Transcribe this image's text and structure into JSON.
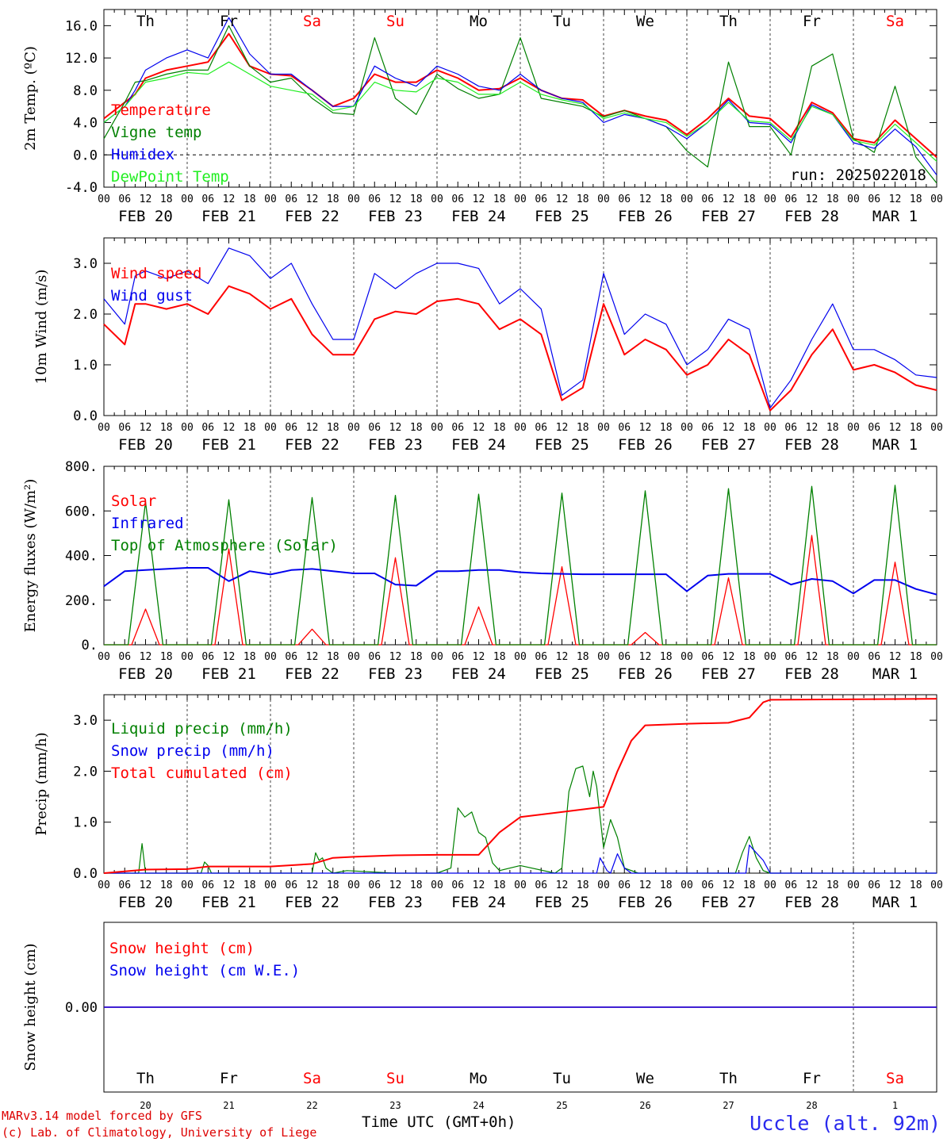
{
  "run_label": "run: 2025022018",
  "footer": {
    "credit_line1": "MARv3.14 model forced by GFS",
    "credit_line2": "(c) Lab. of Climatology, University of Liege",
    "station": "Uccle (alt. 92m)",
    "time_axis_label": "Time UTC (GMT+0h)"
  },
  "days": [
    "Th",
    "Fr",
    "Sa",
    "Su",
    "Mo",
    "Tu",
    "We",
    "Th",
    "Fr",
    "Sa"
  ],
  "weekend_days": [
    "Sa",
    "Su"
  ],
  "dates": [
    "FEB 20",
    "FEB 21",
    "FEB 22",
    "FEB 23",
    "FEB 24",
    "FEB 25",
    "FEB 26",
    "FEB 27",
    "FEB 28",
    "MAR  1"
  ],
  "day_numbers": [
    "20",
    "21",
    "22",
    "23",
    "24",
    "25",
    "26",
    "27",
    "28",
    "1"
  ],
  "hour_ticks": [
    "00",
    "06",
    "12",
    "18"
  ],
  "chart_data": [
    {
      "type": "line",
      "ylabel": "2m Temp. (ºC)",
      "ylim": [
        -4,
        18
      ],
      "yticks": [
        "-4.0",
        "0.0",
        "4.0",
        "8.0",
        "12.0",
        "16.0"
      ],
      "x_hours": [
        0,
        6,
        9,
        12,
        18,
        24,
        30,
        36,
        42,
        48,
        54,
        60,
        66,
        72,
        78,
        84,
        90,
        96,
        102,
        108,
        114,
        120,
        126,
        132,
        138,
        144,
        150,
        156,
        162,
        168,
        174,
        180,
        186,
        192,
        198,
        204,
        210,
        216,
        222,
        228,
        234,
        240
      ],
      "series": [
        {
          "name": "Temperature",
          "color": "#ff0000",
          "values": [
            4.5,
            6.5,
            7.5,
            9.5,
            10.5,
            11,
            11.5,
            15,
            11,
            10,
            9.8,
            8,
            6,
            7,
            10,
            9,
            9,
            10.5,
            9.5,
            8,
            8.2,
            9.5,
            8,
            7,
            6.8,
            4.8,
            5.5,
            4.8,
            4.3,
            2.5,
            4.5,
            7,
            4.8,
            4.5,
            2.2,
            6.5,
            5.2,
            2,
            1.5,
            4.3,
            2,
            -0.3
          ]
        },
        {
          "name": "Vigne temp",
          "color": "#008000",
          "values": [
            2,
            6.5,
            9,
            9.2,
            10,
            10.5,
            10.5,
            16,
            11,
            9,
            9.5,
            7,
            5.2,
            5,
            14.5,
            7,
            5,
            10,
            8.2,
            7,
            7.5,
            14.5,
            7,
            6.5,
            6,
            4.7,
            5.5,
            4.5,
            3.5,
            0.5,
            -1.5,
            11.5,
            3.5,
            3.5,
            0,
            11,
            12.5,
            2,
            0.3,
            8.5,
            -0.3,
            -3.5
          ]
        },
        {
          "name": "Humidex",
          "color": "#0000ee",
          "values": [
            4,
            6,
            8,
            10.5,
            12,
            13,
            12,
            17,
            12.5,
            10,
            10,
            8,
            6,
            6,
            11,
            9.5,
            8.5,
            11,
            10,
            8.5,
            8,
            10,
            8,
            7,
            6.5,
            4,
            5,
            4.5,
            3.5,
            2,
            4,
            6.8,
            4,
            3.8,
            1.5,
            6.2,
            5,
            1.5,
            0.8,
            3.2,
            1,
            -2.5
          ]
        },
        {
          "name": "DewPoint Temp",
          "color": "#22ee22",
          "values": [
            4,
            6,
            7.5,
            9,
            9.5,
            10.2,
            10,
            11.5,
            10,
            8.5,
            8,
            7.5,
            5.5,
            6,
            9,
            8,
            7.8,
            9.5,
            9,
            7.5,
            7.5,
            9,
            7.5,
            6.8,
            6.3,
            4.5,
            5.2,
            4.5,
            4,
            2.3,
            4,
            6.5,
            4.2,
            4,
            1.8,
            6,
            5,
            1.8,
            1.2,
            3.8,
            1.5,
            -0.8
          ]
        }
      ]
    },
    {
      "type": "line",
      "ylabel": "10m Wind (m/s)",
      "ylim": [
        0,
        3.5
      ],
      "yticks": [
        "0.0",
        "1.0",
        "2.0",
        "3.0"
      ],
      "x_hours": [
        0,
        6,
        9,
        12,
        18,
        24,
        30,
        36,
        42,
        48,
        54,
        60,
        66,
        72,
        78,
        84,
        90,
        96,
        102,
        108,
        114,
        120,
        126,
        132,
        138,
        144,
        150,
        156,
        162,
        168,
        174,
        180,
        186,
        192,
        198,
        204,
        210,
        216,
        222,
        228,
        234,
        240
      ],
      "series": [
        {
          "name": "Wind speed",
          "color": "#ff0000",
          "values": [
            1.8,
            1.4,
            2.2,
            2.2,
            2.1,
            2.2,
            2.0,
            2.55,
            2.4,
            2.1,
            2.3,
            1.6,
            1.2,
            1.2,
            1.9,
            2.05,
            2.0,
            2.25,
            2.3,
            2.2,
            1.7,
            1.9,
            1.6,
            0.3,
            0.55,
            2.2,
            1.2,
            1.5,
            1.3,
            0.8,
            1.0,
            1.5,
            1.2,
            0.1,
            0.5,
            1.2,
            1.7,
            0.9,
            1.0,
            0.85,
            0.6,
            0.5
          ]
        },
        {
          "name": "Wind gust",
          "color": "#0000ee",
          "values": [
            2.3,
            1.8,
            2.75,
            2.85,
            2.7,
            2.85,
            2.6,
            3.3,
            3.15,
            2.7,
            3.0,
            2.2,
            1.5,
            1.5,
            2.8,
            2.5,
            2.8,
            3.0,
            3.0,
            2.9,
            2.2,
            2.5,
            2.1,
            0.4,
            0.7,
            2.8,
            1.6,
            2.0,
            1.8,
            1.0,
            1.3,
            1.9,
            1.7,
            0.15,
            0.7,
            1.5,
            2.2,
            1.3,
            1.3,
            1.1,
            0.8,
            0.75
          ]
        }
      ]
    },
    {
      "type": "line",
      "ylabel": "Energy fluxes (W/m²)",
      "ylim": [
        0,
        800
      ],
      "yticks": [
        "0.",
        "200.",
        "400.",
        "600.",
        "800."
      ],
      "series": [
        {
          "name": "Solar",
          "color": "#ff0000",
          "peaks": [
            160,
            430,
            70,
            390,
            170,
            350,
            55,
            300,
            490,
            370
          ]
        },
        {
          "name": "Infrared",
          "color": "#0000ee",
          "x_hours": [
            0,
            6,
            12,
            18,
            24,
            30,
            36,
            42,
            48,
            54,
            60,
            66,
            72,
            78,
            84,
            90,
            96,
            102,
            108,
            114,
            120,
            126,
            132,
            138,
            144,
            150,
            156,
            162,
            168,
            174,
            180,
            186,
            192,
            198,
            204,
            210,
            216,
            222,
            228,
            234,
            240
          ],
          "values": [
            262,
            330,
            335,
            340,
            345,
            345,
            285,
            330,
            315,
            335,
            340,
            330,
            320,
            320,
            270,
            265,
            330,
            330,
            335,
            335,
            325,
            320,
            318,
            316,
            316,
            316,
            316,
            316,
            240,
            310,
            318,
            318,
            318,
            270,
            295,
            285,
            230,
            290,
            290,
            250,
            225
          ]
        },
        {
          "name": "Top of Atmosphere (Solar)",
          "color": "#008000",
          "peaks": [
            640,
            650,
            660,
            670,
            675,
            680,
            690,
            700,
            710,
            715
          ]
        }
      ]
    },
    {
      "type": "line",
      "ylabel": "Precip (mm/h)",
      "ylim": [
        0,
        3.5
      ],
      "yticks": [
        "0.0",
        "1.0",
        "2.0",
        "3.0"
      ],
      "series": [
        {
          "name": "Liquid precip (mm/h)",
          "color": "#008000",
          "x_hours": [
            0,
            10,
            11,
            12,
            13,
            28,
            29,
            30,
            31,
            60,
            61,
            62,
            63,
            64,
            66,
            70,
            84,
            96,
            100,
            102,
            104,
            106,
            108,
            110,
            112,
            114,
            120,
            130,
            132,
            134,
            136,
            138,
            139,
            140,
            141,
            142,
            144,
            146,
            148,
            150,
            154,
            182,
            184,
            186,
            188,
            190,
            192,
            240
          ],
          "values": [
            0,
            0,
            0.58,
            0,
            0,
            0,
            0.22,
            0.15,
            0,
            0,
            0.4,
            0.25,
            0.3,
            0.1,
            0,
            0.05,
            0,
            0,
            0.1,
            1.28,
            1.1,
            1.2,
            0.8,
            0.7,
            0.2,
            0.05,
            0.15,
            0,
            0.1,
            1.6,
            2.05,
            2.1,
            1.8,
            1.5,
            2.0,
            1.7,
            0.5,
            1.05,
            0.7,
            0.1,
            0,
            0,
            0.4,
            0.72,
            0.3,
            0.05,
            0,
            0
          ]
        },
        {
          "name": "Snow precip (mm/h)",
          "color": "#0000ee",
          "x_hours": [
            0,
            142,
            143,
            145,
            146,
            148,
            150,
            152,
            180,
            185,
            186,
            188,
            190,
            192,
            240
          ],
          "values": [
            0,
            0,
            0.3,
            0.05,
            0,
            0.38,
            0.1,
            0,
            0,
            0,
            0.55,
            0.4,
            0.25,
            0,
            0
          ]
        },
        {
          "name": "Total cumulated (cm)",
          "color": "#ff0000",
          "x_hours": [
            0,
            12,
            24,
            30,
            48,
            60,
            66,
            72,
            84,
            96,
            108,
            114,
            120,
            132,
            138,
            144,
            148,
            152,
            156,
            168,
            180,
            186,
            190,
            192,
            240
          ],
          "values": [
            0,
            0.07,
            0.08,
            0.13,
            0.13,
            0.18,
            0.3,
            0.32,
            0.35,
            0.36,
            0.36,
            0.8,
            1.1,
            1.2,
            1.25,
            1.3,
            2.0,
            2.6,
            2.9,
            2.93,
            2.95,
            3.05,
            3.35,
            3.4,
            3.42
          ]
        }
      ]
    },
    {
      "type": "line",
      "ylabel": "Snow height (cm)",
      "yticks": [
        "0.00"
      ],
      "series": [
        {
          "name": "Snow height (cm)",
          "color": "#ff0000",
          "values": [
            0,
            0
          ]
        },
        {
          "name": "Snow height (cm W.E.)",
          "color": "#0000ee",
          "values": [
            0,
            0
          ]
        }
      ]
    }
  ]
}
